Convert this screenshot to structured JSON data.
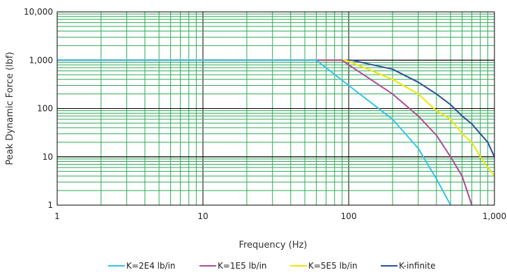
{
  "chart_data": {
    "type": "line",
    "title": "",
    "xlabel": "Frequency (Hz)",
    "ylabel": "Peak Dynamic Force (lbf)",
    "x_scale": "log",
    "y_scale": "log",
    "xlim": [
      1,
      1000
    ],
    "ylim": [
      1,
      10000
    ],
    "x_ticks": [
      "1",
      "10",
      "100",
      "1,000"
    ],
    "y_ticks": [
      "10,000",
      "1,000",
      "100",
      "10",
      "1"
    ],
    "grid": true,
    "legend_position": "bottom",
    "series": [
      {
        "name": "K=2E4 lb/in",
        "color": "#33c4e6",
        "x": [
          1,
          60,
          100,
          200,
          300,
          400,
          500
        ],
        "y": [
          1000,
          1000,
          300,
          60,
          15,
          3.5,
          1
        ]
      },
      {
        "name": "K=1E5 lb/in",
        "color": "#b04a9a",
        "x": [
          1,
          90,
          100,
          200,
          300,
          400,
          500,
          600,
          700
        ],
        "y": [
          1000,
          1000,
          800,
          200,
          70,
          28,
          10,
          4,
          1
        ]
      },
      {
        "name": "K=5E5 lb/in",
        "color": "#f2e600",
        "x": [
          1,
          95,
          100,
          200,
          300,
          400,
          500,
          600,
          700,
          800,
          1000
        ],
        "y": [
          1000,
          1000,
          950,
          400,
          200,
          90,
          60,
          30,
          20,
          10,
          4
        ]
      },
      {
        "name": "K-infinite",
        "color": "#2c4e9a",
        "x": [
          1,
          100,
          105,
          200,
          300,
          400,
          500,
          600,
          700,
          800,
          900,
          1000
        ],
        "y": [
          1000,
          1000,
          1000,
          650,
          350,
          200,
          120,
          70,
          48,
          30,
          20,
          10
        ]
      }
    ]
  }
}
